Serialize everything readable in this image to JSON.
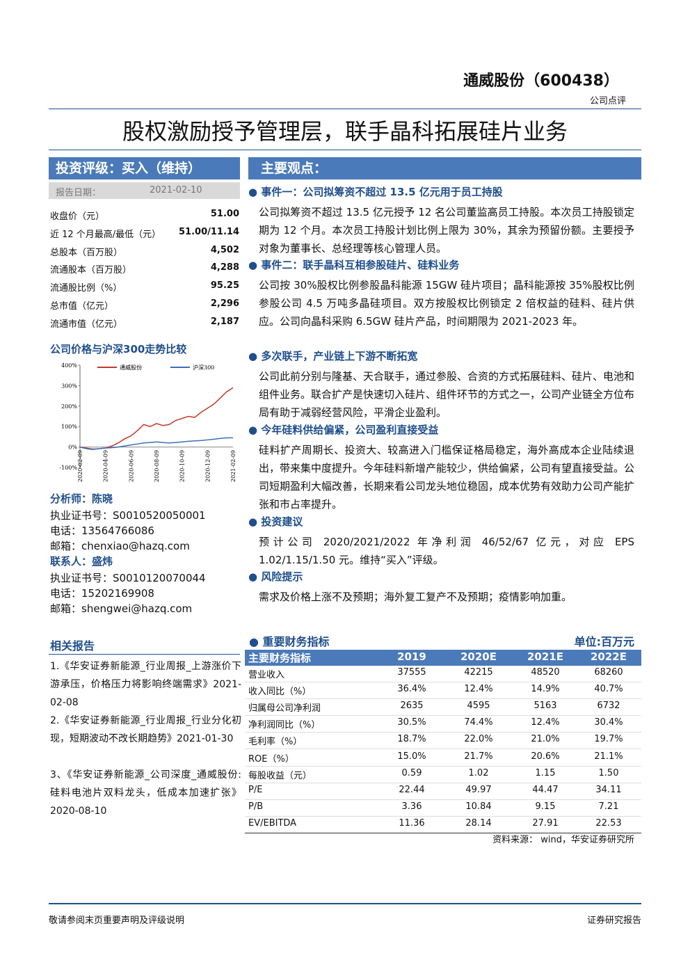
{
  "header": {
    "company": "通威股份（600438）",
    "report_type": "公司点评",
    "title": "股权激励授予管理层，联手晶科拓展硅片业务"
  },
  "rating": {
    "label": "投资评级：买入（维持）",
    "date_label": "报告日期：",
    "date": "2021-02-10"
  },
  "stats": {
    "rows": [
      [
        "收盘价（元）",
        "51.00"
      ],
      [
        "近 12 个月最高/最低（元）",
        "51.00/11.14"
      ],
      [
        "总股本（百万股）",
        "4,502"
      ],
      [
        "流通股本（百万股）",
        "4,288"
      ],
      [
        "流通股比例（%）",
        "95.25"
      ],
      [
        "总市值（亿元）",
        "2,296"
      ],
      [
        "流通市值（亿元）",
        "2,187"
      ]
    ]
  },
  "chart_data": {
    "type": "line",
    "title": "公司价格与沪深300走势比较",
    "categories": [
      "2020-02-09",
      null,
      null,
      null,
      "2020-04-09",
      null,
      null,
      null,
      "2020-06-09",
      null,
      null,
      null,
      "2020-08-09",
      null,
      null,
      null,
      "2020-10-09",
      null,
      null,
      null,
      "2020-12-09",
      null,
      null,
      null,
      "2021-02-09"
    ],
    "series": [
      {
        "name": "通威股份",
        "color": "#c0392b",
        "values": [
          0,
          -5,
          -10,
          -8,
          -5,
          5,
          20,
          40,
          55,
          80,
          110,
          100,
          115,
          105,
          110,
          130,
          140,
          150,
          145,
          170,
          190,
          210,
          240,
          270,
          290
        ]
      },
      {
        "name": "沪深300",
        "color": "#3d6fb5",
        "values": [
          0,
          -8,
          -12,
          -8,
          -5,
          -3,
          0,
          5,
          10,
          15,
          20,
          22,
          25,
          22,
          20,
          22,
          25,
          28,
          30,
          32,
          35,
          38,
          42,
          45,
          45
        ]
      }
    ],
    "ylim": [
      -100,
      400
    ],
    "yticks": [
      {
        "value": -100,
        "label": "-100%"
      },
      {
        "value": 0,
        "label": "0%"
      },
      {
        "value": 100,
        "label": "100%"
      },
      {
        "value": 200,
        "label": "200%"
      },
      {
        "value": 300,
        "label": "300%"
      },
      {
        "value": 400,
        "label": "400%"
      }
    ]
  },
  "analysts": [
    {
      "role": "分析师：陈晓",
      "cert": "执业证书号：S0010520050001",
      "phone": "电话：13564766086",
      "email": "邮箱：chenxiao@hazq.com"
    },
    {
      "role": "联系人：盛炜",
      "cert": "执业证书号：S0010120070044",
      "phone": "电话：15202169908",
      "email": "邮箱：shengwei@hazq.com"
    }
  ],
  "related": {
    "title": "相关报告",
    "items": [
      "1.《华安证券新能源_行业周报_上游涨价下游承压，价格压力将影响终端需求》2021-02-08",
      "2.《华安证券新能源_行业周报_行业分化初现，短期波动不改长期趋势》2021-01-30",
      "3、《华安证券新能源_公司深度_通威股份: 硅料电池片双料龙头，低成本加速扩张》2020-08-10"
    ]
  },
  "views": {
    "title": "主要观点：",
    "sections": [
      {
        "heading": "事件一：公司拟筹资不超过 13.5 亿元用于员工持股",
        "text": "公司拟筹资不超过 13.5 亿元授予 12 名公司董监高员工持股。本次员工持股锁定期为 12 个月。本次员工持股计划比例上限为 30%，其余为预留份额。主要授予对象为董事长、总经理等核心管理人员。"
      },
      {
        "heading": "事件二：联手晶科互相参股硅片、硅料业务",
        "text": "公司按 30%股权比例参股晶科能源 15GW 硅片项目；晶科能源按 35%股权比例参股公司 4.5 万吨多晶硅项目。双方按股权比例锁定 2 倍权益的硅料、硅片供应。公司向晶科采购 6.5GW 硅片产品，时间期限为 2021-2023 年。"
      },
      {
        "heading": "多次联手，产业链上下游不断拓宽",
        "text": "公司此前分别与隆基、天合联手，通过参股、合资的方式拓展硅料、硅片、电池和组件业务。联合扩产是快速切入硅片、组件环节的方式之一，公司产业链全方位布局有助于减弱经营风险，平滑企业盈利。"
      },
      {
        "heading": "今年硅料供给偏紧，公司盈利直接受益",
        "text": "硅料扩产周期长、投资大、较高进入门槛保证格局稳定，海外高成本企业陆续退出，带来集中度提升。今年硅料新增产能较少，供给偏紧，公司有望直接受益。公司短期盈利大幅改善，长期来看公司龙头地位稳固，成本优势有效助力公司产能扩张和市占率提升。"
      },
      {
        "heading": "投资建议",
        "text": "预计公司 2020/2021/2022 年净利润 46/52/67 亿元，对应 EPS 1.02/1.15/1.50 元。维持“买入”评级。"
      },
      {
        "heading": "风险提示",
        "text": "需求及价格上涨不及预期；海外复工复产不及预期；疫情影响加重。"
      }
    ]
  },
  "financials": {
    "title": "重要财务指标",
    "unit": "单位:百万元",
    "header": [
      "主要财务指标",
      "2019",
      "2020E",
      "2021E",
      "2022E"
    ],
    "rows": [
      [
        "营业收入",
        "37555",
        "42215",
        "48520",
        "68260"
      ],
      [
        "收入同比（%）",
        "36.4%",
        "12.4%",
        "14.9%",
        "40.7%"
      ],
      [
        "归属母公司净利润",
        "2635",
        "4595",
        "5163",
        "6732"
      ],
      [
        "净利润同比（%）",
        "30.5%",
        "74.4%",
        "12.4%",
        "30.4%"
      ],
      [
        "毛利率（%）",
        "18.7%",
        "22.0%",
        "21.0%",
        "19.7%"
      ],
      [
        "ROE（%）",
        "15.0%",
        "21.7%",
        "20.6%",
        "21.1%"
      ],
      [
        "每股收益（元）",
        "0.59",
        "1.02",
        "1.15",
        "1.50"
      ],
      [
        "P/E",
        "22.44",
        "49.97",
        "44.47",
        "34.11"
      ],
      [
        "P/B",
        "3.36",
        "10.84",
        "9.15",
        "7.21"
      ],
      [
        "EV/EBITDA",
        "11.36",
        "28.14",
        "27.91",
        "22.53"
      ]
    ],
    "source": "资料来源： wind，华安证券研究所"
  },
  "footer": {
    "left": "敬请参阅末页重要声明及评级说明",
    "right": "证券研究报告"
  }
}
